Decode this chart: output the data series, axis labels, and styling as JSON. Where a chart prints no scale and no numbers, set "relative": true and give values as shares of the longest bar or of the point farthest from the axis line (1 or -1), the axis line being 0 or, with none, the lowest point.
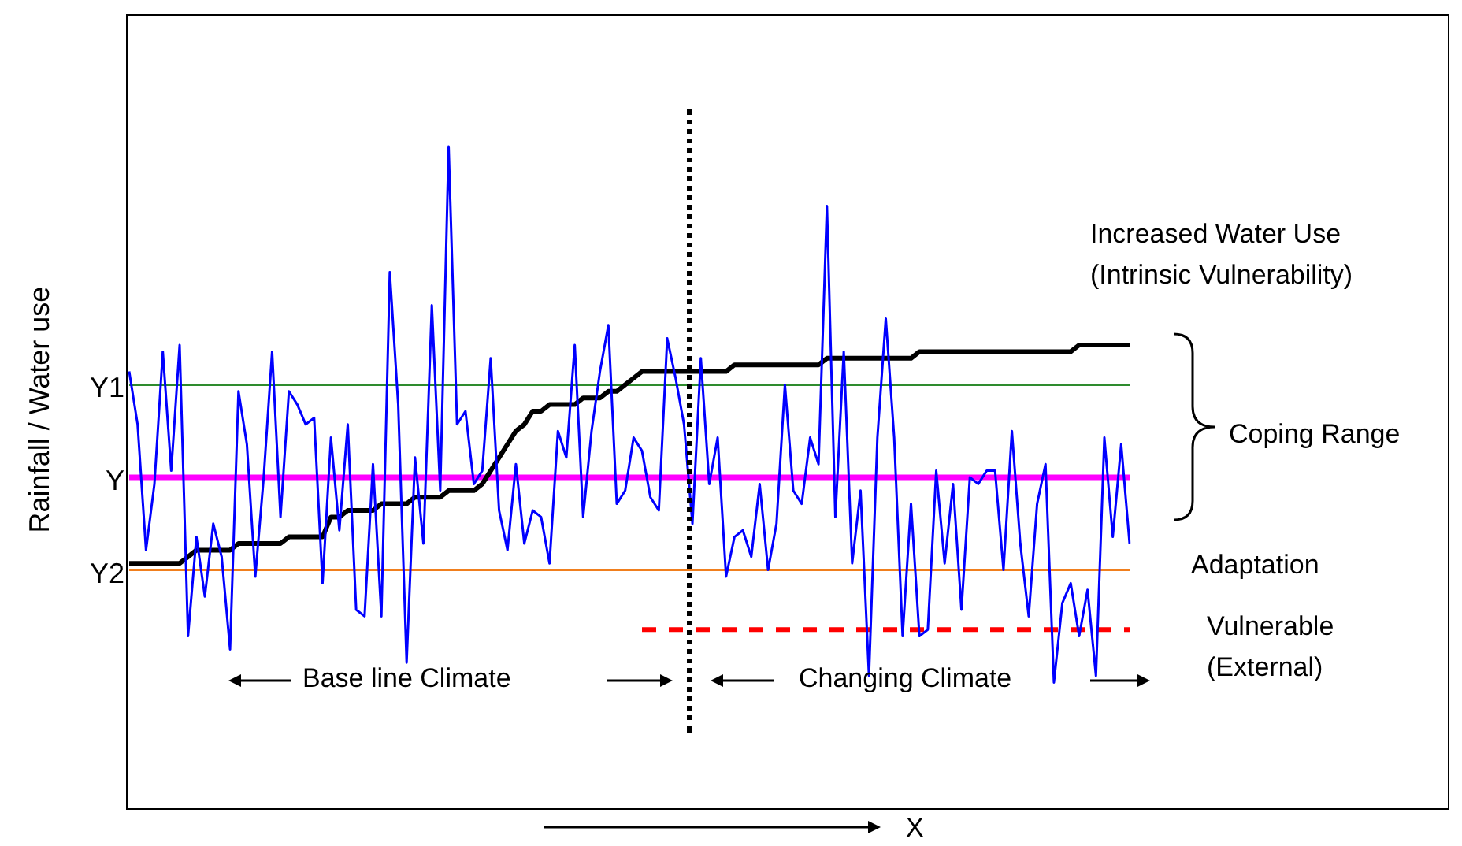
{
  "chart_data": {
    "type": "line",
    "xlabel": "X",
    "ylabel": "Rainfall / Water use",
    "relative": true,
    "legend": false,
    "marker": "none",
    "categories": [
      null,
      null,
      null,
      null,
      null,
      null,
      null,
      null,
      null,
      null,
      null,
      null,
      null,
      null,
      null,
      null,
      null,
      null,
      null,
      null,
      null,
      null,
      null,
      null,
      null,
      null,
      null,
      null,
      null,
      null,
      null,
      null,
      null,
      null,
      null,
      null,
      null,
      null,
      null,
      null,
      null,
      null,
      null,
      null,
      null,
      null,
      null,
      null,
      null,
      null,
      null,
      null,
      null,
      null,
      null,
      null,
      null,
      null,
      null,
      null,
      null,
      null,
      null,
      null,
      null,
      null,
      null,
      null,
      null,
      null,
      null,
      null,
      null,
      null,
      null,
      null,
      null,
      null,
      null,
      null,
      null,
      null,
      null,
      null,
      null,
      null,
      null,
      null,
      null,
      null,
      null,
      null,
      null,
      null,
      null,
      null,
      null,
      null,
      null,
      null,
      null,
      null,
      null,
      null,
      null,
      null,
      null,
      null,
      null,
      null,
      null,
      null,
      null,
      null,
      null,
      null,
      null,
      null,
      null,
      null
    ],
    "series": [
      {
        "color": "#0000ff",
        "values": [
          0.66,
          0.58,
          0.39,
          0.49,
          0.69,
          0.51,
          0.7,
          0.26,
          0.41,
          0.32,
          0.43,
          0.38,
          0.24,
          0.63,
          0.55,
          0.35,
          0.5,
          0.69,
          0.44,
          0.63,
          0.61,
          0.58,
          0.59,
          0.34,
          0.56,
          0.42,
          0.58,
          0.3,
          0.29,
          0.52,
          0.29,
          0.81,
          0.61,
          0.22,
          0.53,
          0.4,
          0.76,
          0.48,
          1.0,
          0.58,
          0.6,
          0.49,
          0.51,
          0.68,
          0.45,
          0.39,
          0.52,
          0.4,
          0.45,
          0.44,
          0.37,
          0.57,
          0.53,
          0.7,
          0.44,
          0.57,
          0.66,
          0.73,
          0.46,
          0.48,
          0.56,
          0.54,
          0.47,
          0.45,
          0.71,
          0.65,
          0.58,
          0.43,
          0.68,
          0.49,
          0.56,
          0.35,
          0.41,
          0.42,
          0.38,
          0.49,
          0.36,
          0.43,
          0.64,
          0.48,
          0.46,
          0.56,
          0.52,
          0.91,
          0.44,
          0.69,
          0.37,
          0.48,
          0.2,
          0.56,
          0.74,
          0.56,
          0.26,
          0.46,
          0.26,
          0.27,
          0.51,
          0.37,
          0.49,
          0.3,
          0.5,
          0.49,
          0.51,
          0.51,
          0.36,
          0.57,
          0.4,
          0.29,
          0.46,
          0.52,
          0.19,
          0.31,
          0.34,
          0.26,
          0.33,
          0.2,
          0.56,
          0.41,
          0.55,
          0.4
        ]
      },
      {
        "name": "Increased Water Use (Intrinsic Vulnerability)",
        "color": "#000000",
        "values": [
          0.37,
          0.37,
          0.37,
          0.37,
          0.37,
          0.37,
          0.37,
          0.38,
          0.39,
          0.39,
          0.39,
          0.39,
          0.39,
          0.4,
          0.4,
          0.4,
          0.4,
          0.4,
          0.4,
          0.41,
          0.41,
          0.41,
          0.41,
          0.41,
          0.44,
          0.44,
          0.45,
          0.45,
          0.45,
          0.45,
          0.46,
          0.46,
          0.46,
          0.46,
          0.47,
          0.47,
          0.47,
          0.47,
          0.48,
          0.48,
          0.48,
          0.48,
          0.49,
          0.51,
          0.53,
          0.55,
          0.57,
          0.58,
          0.6,
          0.6,
          0.61,
          0.61,
          0.61,
          0.61,
          0.62,
          0.62,
          0.62,
          0.63,
          0.63,
          0.64,
          0.65,
          0.66,
          0.66,
          0.66,
          0.66,
          0.66,
          0.66,
          0.66,
          0.66,
          0.66,
          0.66,
          0.66,
          0.67,
          0.67,
          0.67,
          0.67,
          0.67,
          0.67,
          0.67,
          0.67,
          0.67,
          0.67,
          0.67,
          0.68,
          0.68,
          0.68,
          0.68,
          0.68,
          0.68,
          0.68,
          0.68,
          0.68,
          0.68,
          0.68,
          0.69,
          0.69,
          0.69,
          0.69,
          0.69,
          0.69,
          0.69,
          0.69,
          0.69,
          0.69,
          0.69,
          0.69,
          0.69,
          0.69,
          0.69,
          0.69,
          0.69,
          0.69,
          0.69,
          0.7,
          0.7,
          0.7,
          0.7,
          0.7,
          0.7,
          0.7
        ]
      },
      {
        "color": "#ff0000",
        "line_style": "dashed",
        "values": [
          null,
          null,
          null,
          null,
          null,
          null,
          null,
          null,
          null,
          null,
          null,
          null,
          null,
          null,
          null,
          null,
          null,
          null,
          null,
          null,
          null,
          null,
          null,
          null,
          null,
          null,
          null,
          null,
          null,
          null,
          null,
          null,
          null,
          null,
          null,
          null,
          null,
          null,
          null,
          null,
          null,
          null,
          null,
          null,
          null,
          null,
          null,
          null,
          null,
          null,
          null,
          null,
          null,
          null,
          null,
          null,
          null,
          null,
          null,
          null,
          null,
          0.27,
          0.27,
          0.27,
          0.27,
          0.27,
          0.27,
          0.27,
          0.27,
          0.27,
          0.27,
          0.27,
          0.27,
          0.27,
          0.27,
          0.27,
          0.27,
          0.27,
          0.27,
          0.27,
          0.27,
          0.27,
          0.27,
          0.27,
          0.27,
          0.27,
          0.27,
          0.27,
          0.27,
          0.27,
          0.27,
          0.27,
          0.27,
          0.27,
          0.27,
          0.27,
          0.27,
          0.27,
          0.27,
          0.27,
          0.27,
          0.27,
          0.27,
          0.27,
          0.27,
          0.27,
          0.27,
          0.27,
          0.27,
          0.27,
          0.27,
          0.27,
          0.27,
          0.27,
          0.27,
          0.27,
          0.27,
          0.27,
          0.27,
          0.27
        ]
      }
    ],
    "ref_lines": [
      {
        "axis": "y",
        "value": 0.64,
        "label": "Y1",
        "color": "#2e8b2e"
      },
      {
        "axis": "y",
        "value": 0.5,
        "label": "Y",
        "color": "#ff00ff"
      },
      {
        "axis": "y",
        "value": 0.36,
        "label": "Y2",
        "color": "#f07f1e"
      }
    ],
    "annotations": [
      "Coping Range",
      "Adaptation",
      "Vulnerable (External)",
      "Base line Climate",
      "Changing Climate"
    ]
  }
}
